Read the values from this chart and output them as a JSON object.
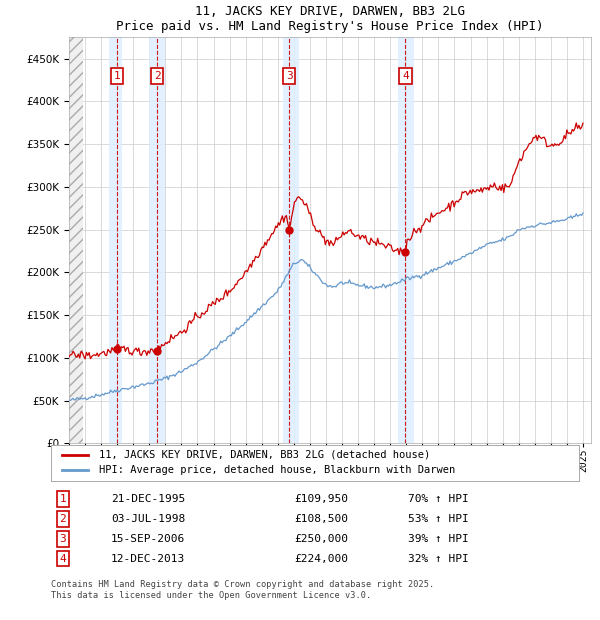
{
  "title": "11, JACKS KEY DRIVE, DARWEN, BB3 2LG",
  "subtitle": "Price paid vs. HM Land Registry's House Price Index (HPI)",
  "transactions": [
    {
      "num": 1,
      "date": "21-DEC-1995",
      "price": 109950,
      "year": 1995.97,
      "hpi_change": "70% ↑ HPI"
    },
    {
      "num": 2,
      "date": "03-JUL-1998",
      "price": 108500,
      "year": 1998.5,
      "hpi_change": "53% ↑ HPI"
    },
    {
      "num": 3,
      "date": "15-SEP-2006",
      "price": 250000,
      "year": 2006.71,
      "hpi_change": "39% ↑ HPI"
    },
    {
      "num": 4,
      "date": "12-DEC-2013",
      "price": 224000,
      "year": 2013.95,
      "hpi_change": "32% ↑ HPI"
    }
  ],
  "legend_line1": "11, JACKS KEY DRIVE, DARWEN, BB3 2LG (detached house)",
  "legend_line2": "HPI: Average price, detached house, Blackburn with Darwen",
  "footer1": "Contains HM Land Registry data © Crown copyright and database right 2025.",
  "footer2": "This data is licensed under the Open Government Licence v3.0.",
  "hpi_color": "#6699cc",
  "price_color": "#cc0000",
  "marker_color": "#cc0000",
  "box_color": "#cc0000",
  "grid_color": "#cccccc",
  "highlight_color": "#ddeeff",
  "ylim": [
    0,
    475000
  ],
  "yticks": [
    0,
    50000,
    100000,
    150000,
    200000,
    250000,
    300000,
    350000,
    400000,
    450000
  ],
  "xlim_start": 1993.0,
  "xlim_end": 2025.5,
  "hpi_keypoints_x": [
    1993,
    1994,
    1995,
    1996,
    1997,
    1998,
    1999,
    2000,
    2001,
    2002,
    2003,
    2004,
    2005,
    2006,
    2007,
    2007.5,
    2008,
    2008.5,
    2009,
    2009.5,
    2010,
    2011,
    2012,
    2013,
    2014,
    2015,
    2016,
    2017,
    2018,
    2019,
    2020,
    2020.5,
    2021,
    2022,
    2023,
    2024,
    2024.5,
    2025
  ],
  "hpi_keypoints_y": [
    50000,
    53000,
    57000,
    62000,
    66000,
    70000,
    76000,
    84000,
    95000,
    110000,
    125000,
    142000,
    160000,
    178000,
    210000,
    215000,
    205000,
    195000,
    185000,
    183000,
    188000,
    185000,
    182000,
    185000,
    192000,
    197000,
    205000,
    213000,
    222000,
    232000,
    238000,
    242000,
    250000,
    255000,
    258000,
    262000,
    265000,
    270000
  ],
  "price_keypoints_x": [
    1993,
    1994,
    1994.5,
    1995,
    1995.5,
    1995.97,
    1996,
    1996.5,
    1997,
    1997.5,
    1998,
    1998.5,
    1999,
    2000,
    2001,
    2002,
    2003,
    2004,
    2005,
    2005.5,
    2006,
    2006.5,
    2006.71,
    2007,
    2007.3,
    2007.5,
    2008,
    2008.5,
    2009,
    2009.5,
    2010,
    2010.5,
    2011,
    2011.5,
    2012,
    2012.5,
    2013,
    2013.5,
    2013.95,
    2014,
    2014.5,
    2015,
    2015.5,
    2016,
    2016.5,
    2017,
    2017.5,
    2018,
    2018.5,
    2019,
    2019.5,
    2020,
    2020.5,
    2021,
    2021.5,
    2022,
    2022.5,
    2023,
    2023.5,
    2024,
    2024.5,
    2025
  ],
  "price_keypoints_y": [
    103000,
    103000,
    103000,
    105000,
    107000,
    109950,
    111000,
    110000,
    108000,
    107000,
    108500,
    110000,
    118000,
    130000,
    148000,
    163000,
    178000,
    200000,
    228000,
    242000,
    255000,
    268000,
    250000,
    278000,
    290000,
    285000,
    268000,
    248000,
    237000,
    232000,
    245000,
    248000,
    242000,
    238000,
    235000,
    232000,
    228000,
    225000,
    224000,
    235000,
    248000,
    255000,
    262000,
    270000,
    275000,
    282000,
    290000,
    295000,
    295000,
    298000,
    302000,
    298000,
    302000,
    330000,
    345000,
    360000,
    355000,
    348000,
    352000,
    360000,
    368000,
    370000
  ]
}
